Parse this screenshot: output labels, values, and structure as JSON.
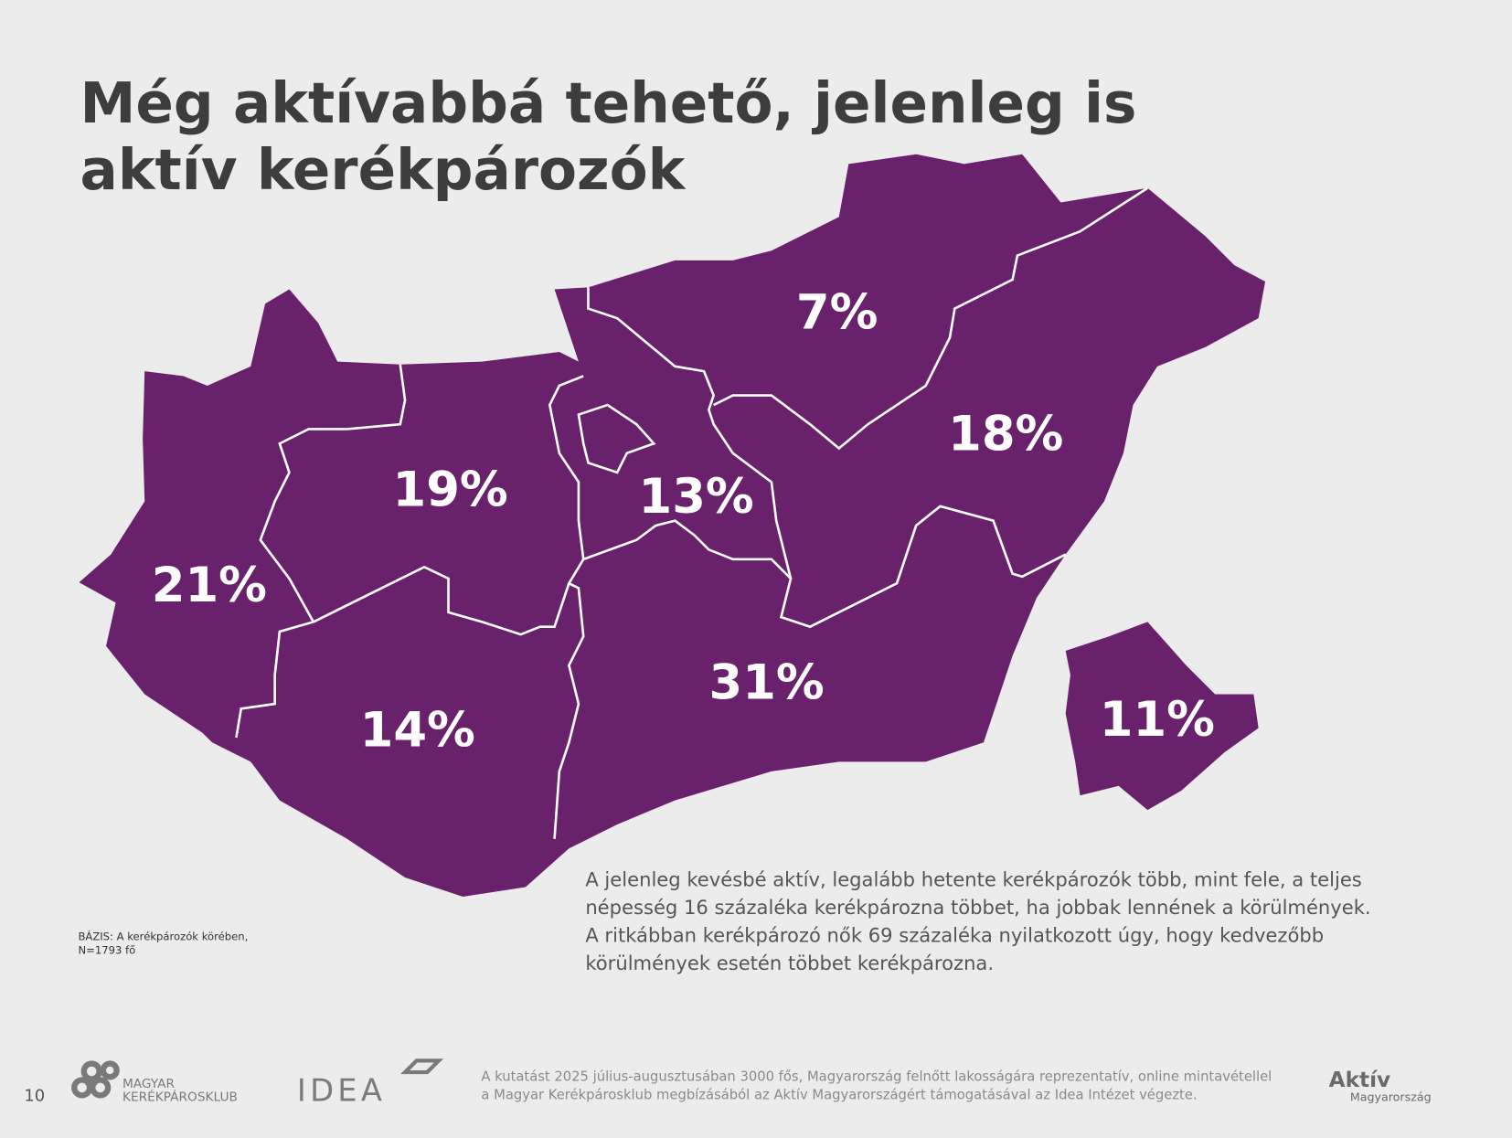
{
  "title": [
    "Még aktívabbá tehető, jelenleg is",
    "aktív kerékpározók"
  ],
  "map": {
    "regions": [
      {
        "label": "7%"
      },
      {
        "label": "18%"
      },
      {
        "label": "19%"
      },
      {
        "label": "13%"
      },
      {
        "label": "21%"
      },
      {
        "label": "14%"
      },
      {
        "label": "31%"
      },
      {
        "label": "11%"
      }
    ]
  },
  "body_text": [
    "A jelenleg kevésbé aktív, legalább hetente kerékpározók több, mint fele, a teljes",
    "népesség 16 százaléka kerékpározna többet, ha jobbak lennének a körülmények.",
    "A ritkábban kerékpározó nők 69 százaléka nyilatkozott úgy, hogy kedvezőbb",
    "körülmények esetén többet kerékpározna."
  ],
  "base_note": [
    "BÁZIS: A kerékpározók körében,",
    "N=1793 fő"
  ],
  "footer": {
    "page_number": "10",
    "club_logo": [
      "MAGYAR",
      "KERÉKPÁROSKLUB"
    ],
    "idea_logo": "IDEA",
    "note": [
      "A kutatást 2025 július-augusztusában 3000 fős, Magyarország felnőtt lakosságára reprezentatív, online mintavétellel",
      "a Magyar Kerékpárosklub megbízásából az Aktív Magyarországért támogatásával az Idea Intézet végezte."
    ],
    "aktiv_logo": [
      "Aktív",
      "Magyarország"
    ]
  }
}
